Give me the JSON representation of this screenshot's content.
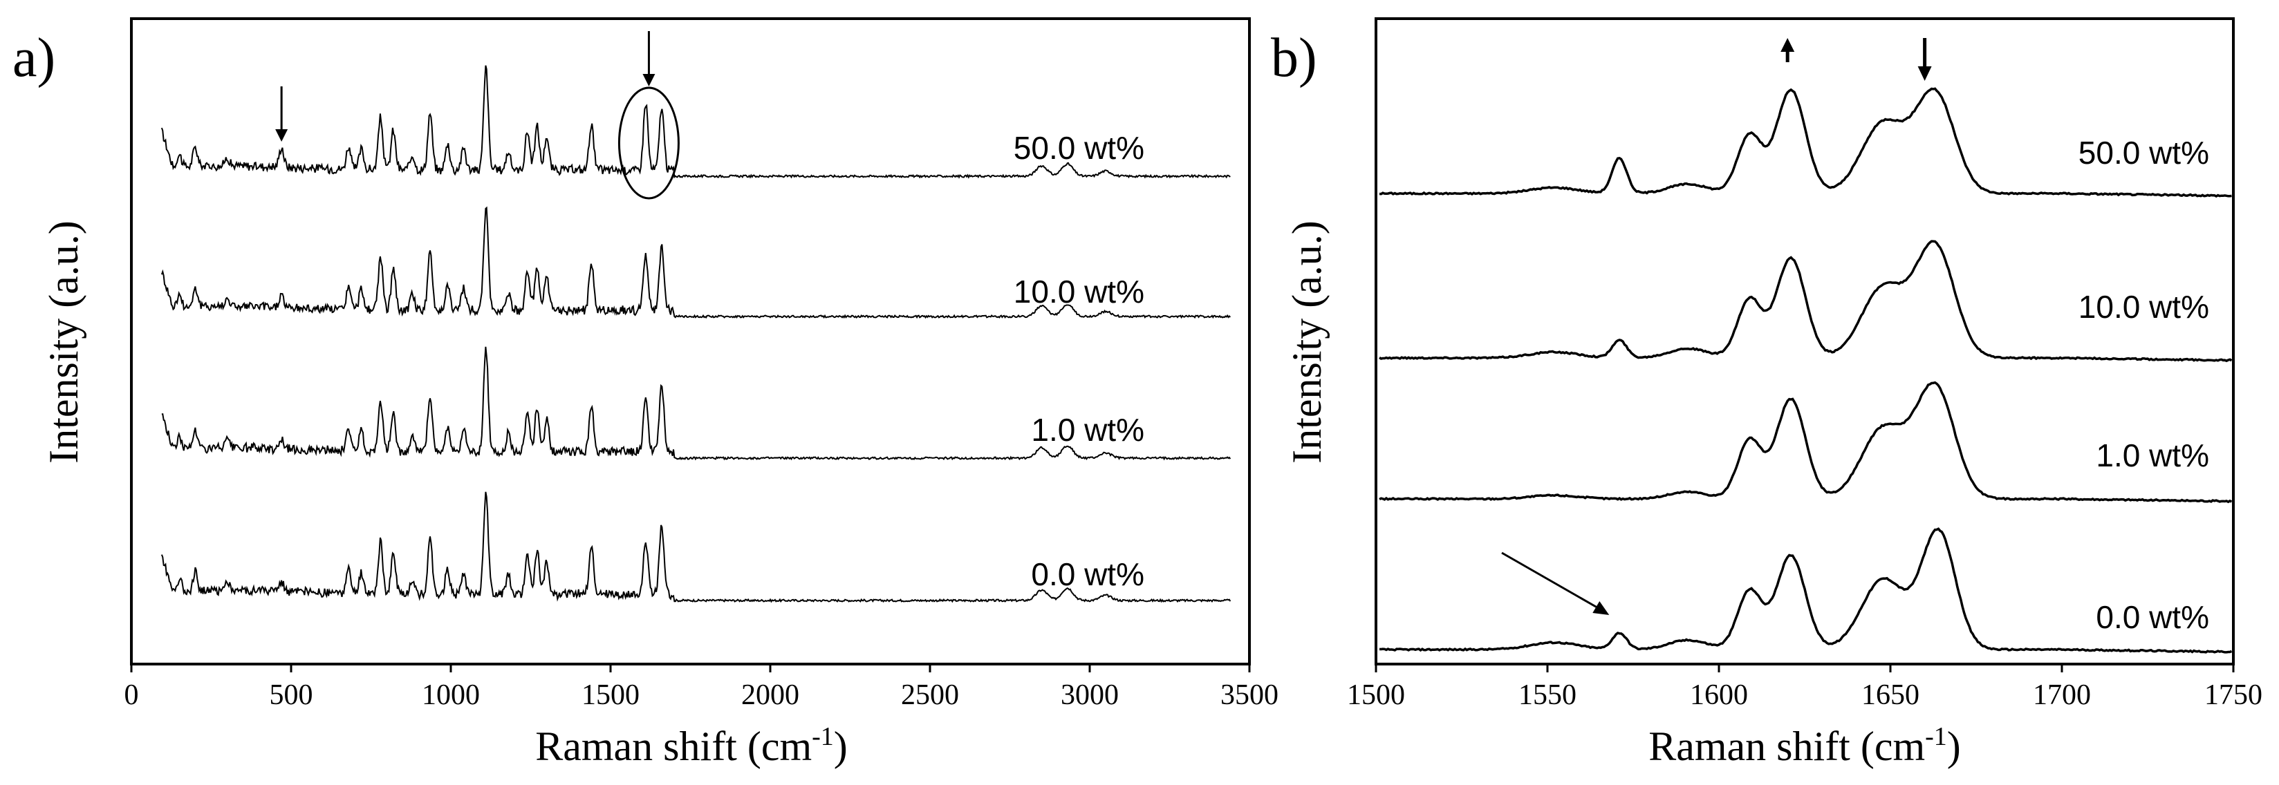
{
  "chart_data": [
    {
      "type": "line",
      "panel_label": "a)",
      "xlabel": "Raman shift (cm",
      "xlabel_sup": "-1",
      "xlabel_close": ")",
      "ylabel": "Intensity (a.u.)",
      "xlim": [
        0,
        3500
      ],
      "xticks": [
        0,
        500,
        1000,
        1500,
        2000,
        2500,
        3000,
        3500
      ],
      "series": [
        {
          "name": "50.0 wt%",
          "label": "50.0 wt%"
        },
        {
          "name": "10.0 wt%",
          "label": "10.0 wt%"
        },
        {
          "name": "1.0 wt%",
          "label": "1.0 wt%"
        },
        {
          "name": "0.0 wt%",
          "label": "0.0 wt%"
        }
      ],
      "peaks": [
        {
          "x": 150,
          "h": 0.12
        },
        {
          "x": 200,
          "h": 0.18
        },
        {
          "x": 300,
          "h": 0.08
        },
        {
          "x": 470,
          "h": 0.12
        },
        {
          "x": 680,
          "h": 0.22
        },
        {
          "x": 720,
          "h": 0.2
        },
        {
          "x": 780,
          "h": 0.5
        },
        {
          "x": 820,
          "h": 0.38
        },
        {
          "x": 880,
          "h": 0.15
        },
        {
          "x": 935,
          "h": 0.55
        },
        {
          "x": 990,
          "h": 0.25
        },
        {
          "x": 1040,
          "h": 0.22
        },
        {
          "x": 1110,
          "h": 1.0
        },
        {
          "x": 1180,
          "h": 0.18
        },
        {
          "x": 1240,
          "h": 0.38
        },
        {
          "x": 1270,
          "h": 0.42
        },
        {
          "x": 1300,
          "h": 0.32
        },
        {
          "x": 1440,
          "h": 0.45
        },
        {
          "x": 1610,
          "h": 0.52
        },
        {
          "x": 1660,
          "h": 0.58
        },
        {
          "x": 2850,
          "h": 0.1
        },
        {
          "x": 2930,
          "h": 0.12
        },
        {
          "x": 3050,
          "h": 0.05
        }
      ],
      "annotations": [
        {
          "type": "arrow-down",
          "x": 470
        },
        {
          "type": "arrow-down",
          "x": 1620
        },
        {
          "type": "ellipse",
          "x": 1620
        }
      ]
    },
    {
      "type": "line",
      "panel_label": "b)",
      "xlabel": "Raman shift (cm",
      "xlabel_sup": "-1",
      "xlabel_close": ")",
      "ylabel": "Intensity (a.u.)",
      "xlim": [
        1500,
        1750
      ],
      "xticks": [
        1500,
        1550,
        1600,
        1650,
        1700,
        1750
      ],
      "series": [
        {
          "name": "50.0 wt%",
          "label": "50.0 wt%",
          "peaks": [
            {
              "x": 1552,
              "h": 0.05,
              "w": 10
            },
            {
              "x": 1571,
              "h": 0.3,
              "w": 3
            },
            {
              "x": 1591,
              "h": 0.08,
              "w": 8
            },
            {
              "x": 1609,
              "h": 0.5,
              "w": 5
            },
            {
              "x": 1621,
              "h": 0.88,
              "w": 6
            },
            {
              "x": 1648,
              "h": 0.6,
              "w": 9
            },
            {
              "x": 1663,
              "h": 0.85,
              "w": 8
            }
          ]
        },
        {
          "name": "10.0 wt%",
          "label": "10.0 wt%",
          "peaks": [
            {
              "x": 1552,
              "h": 0.05,
              "w": 10
            },
            {
              "x": 1571,
              "h": 0.15,
              "w": 3
            },
            {
              "x": 1591,
              "h": 0.08,
              "w": 8
            },
            {
              "x": 1609,
              "h": 0.5,
              "w": 5
            },
            {
              "x": 1621,
              "h": 0.85,
              "w": 6
            },
            {
              "x": 1648,
              "h": 0.6,
              "w": 9
            },
            {
              "x": 1663,
              "h": 0.95,
              "w": 8
            }
          ]
        },
        {
          "name": "1.0 wt%",
          "label": "1.0 wt%",
          "peaks": [
            {
              "x": 1552,
              "h": 0.03,
              "w": 10
            },
            {
              "x": 1591,
              "h": 0.06,
              "w": 8
            },
            {
              "x": 1609,
              "h": 0.5,
              "w": 5
            },
            {
              "x": 1621,
              "h": 0.85,
              "w": 6
            },
            {
              "x": 1648,
              "h": 0.6,
              "w": 9
            },
            {
              "x": 1663,
              "h": 0.95,
              "w": 8
            }
          ]
        },
        {
          "name": "0.0 wt%",
          "label": "0.0 wt%",
          "peaks": [
            {
              "x": 1552,
              "h": 0.06,
              "w": 10
            },
            {
              "x": 1571,
              "h": 0.14,
              "w": 3
            },
            {
              "x": 1591,
              "h": 0.08,
              "w": 8
            },
            {
              "x": 1609,
              "h": 0.5,
              "w": 5
            },
            {
              "x": 1621,
              "h": 0.8,
              "w": 6
            },
            {
              "x": 1648,
              "h": 0.6,
              "w": 9
            },
            {
              "x": 1664,
              "h": 1.0,
              "w": 7
            }
          ]
        }
      ],
      "annotations": [
        {
          "type": "arrow-up",
          "x": 1620
        },
        {
          "type": "arrow-down",
          "x": 1660
        },
        {
          "type": "arrow-diagonal",
          "target_x": 1572
        }
      ]
    }
  ]
}
